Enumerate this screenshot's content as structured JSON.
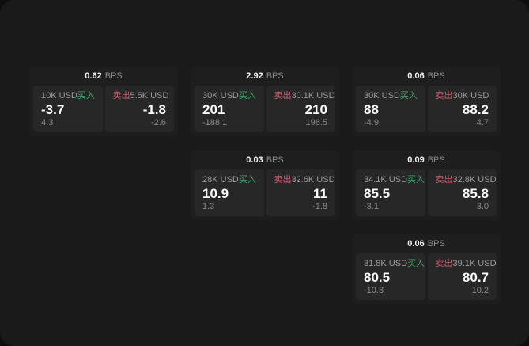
{
  "labels": {
    "bps_unit": "BPS",
    "buy": "买入",
    "sell": "卖出"
  },
  "colors": {
    "buy_green": "#3ca568",
    "sell_red": "#ce5e6e",
    "container_bg": "#1a1a1a",
    "card_bg": "#1e1e1e",
    "panel_bg": "#272727"
  },
  "cards": [
    {
      "bps": "0.62",
      "buy": {
        "amount": "10K USD",
        "value": "-3.7",
        "sub": "4.3"
      },
      "sell": {
        "amount": "5.5K USD",
        "value": "-1.8",
        "sub": "-2.6"
      }
    },
    {
      "bps": "2.92",
      "buy": {
        "amount": "30K USD",
        "value": "201",
        "sub": "-188.1"
      },
      "sell": {
        "amount": "30.1K USD",
        "value": "210",
        "sub": "196.5"
      }
    },
    {
      "bps": "0.06",
      "buy": {
        "amount": "30K USD",
        "value": "88",
        "sub": "-4.9"
      },
      "sell": {
        "amount": "30K USD",
        "value": "88.2",
        "sub": "4.7"
      }
    },
    {
      "bps": "0.03",
      "buy": {
        "amount": "28K USD",
        "value": "10.9",
        "sub": "1.3"
      },
      "sell": {
        "amount": "32.6K USD",
        "value": "11",
        "sub": "-1.8"
      }
    },
    {
      "bps": "0.09",
      "buy": {
        "amount": "34.1K USD",
        "value": "85.5",
        "sub": "-3.1"
      },
      "sell": {
        "amount": "32.8K USD",
        "value": "85.8",
        "sub": "3.0"
      }
    },
    {
      "bps": "0.06",
      "buy": {
        "amount": "31.8K USD",
        "value": "80.5",
        "sub": "-10.8"
      },
      "sell": {
        "amount": "39.1K USD",
        "value": "80.7",
        "sub": "10.2"
      }
    }
  ]
}
